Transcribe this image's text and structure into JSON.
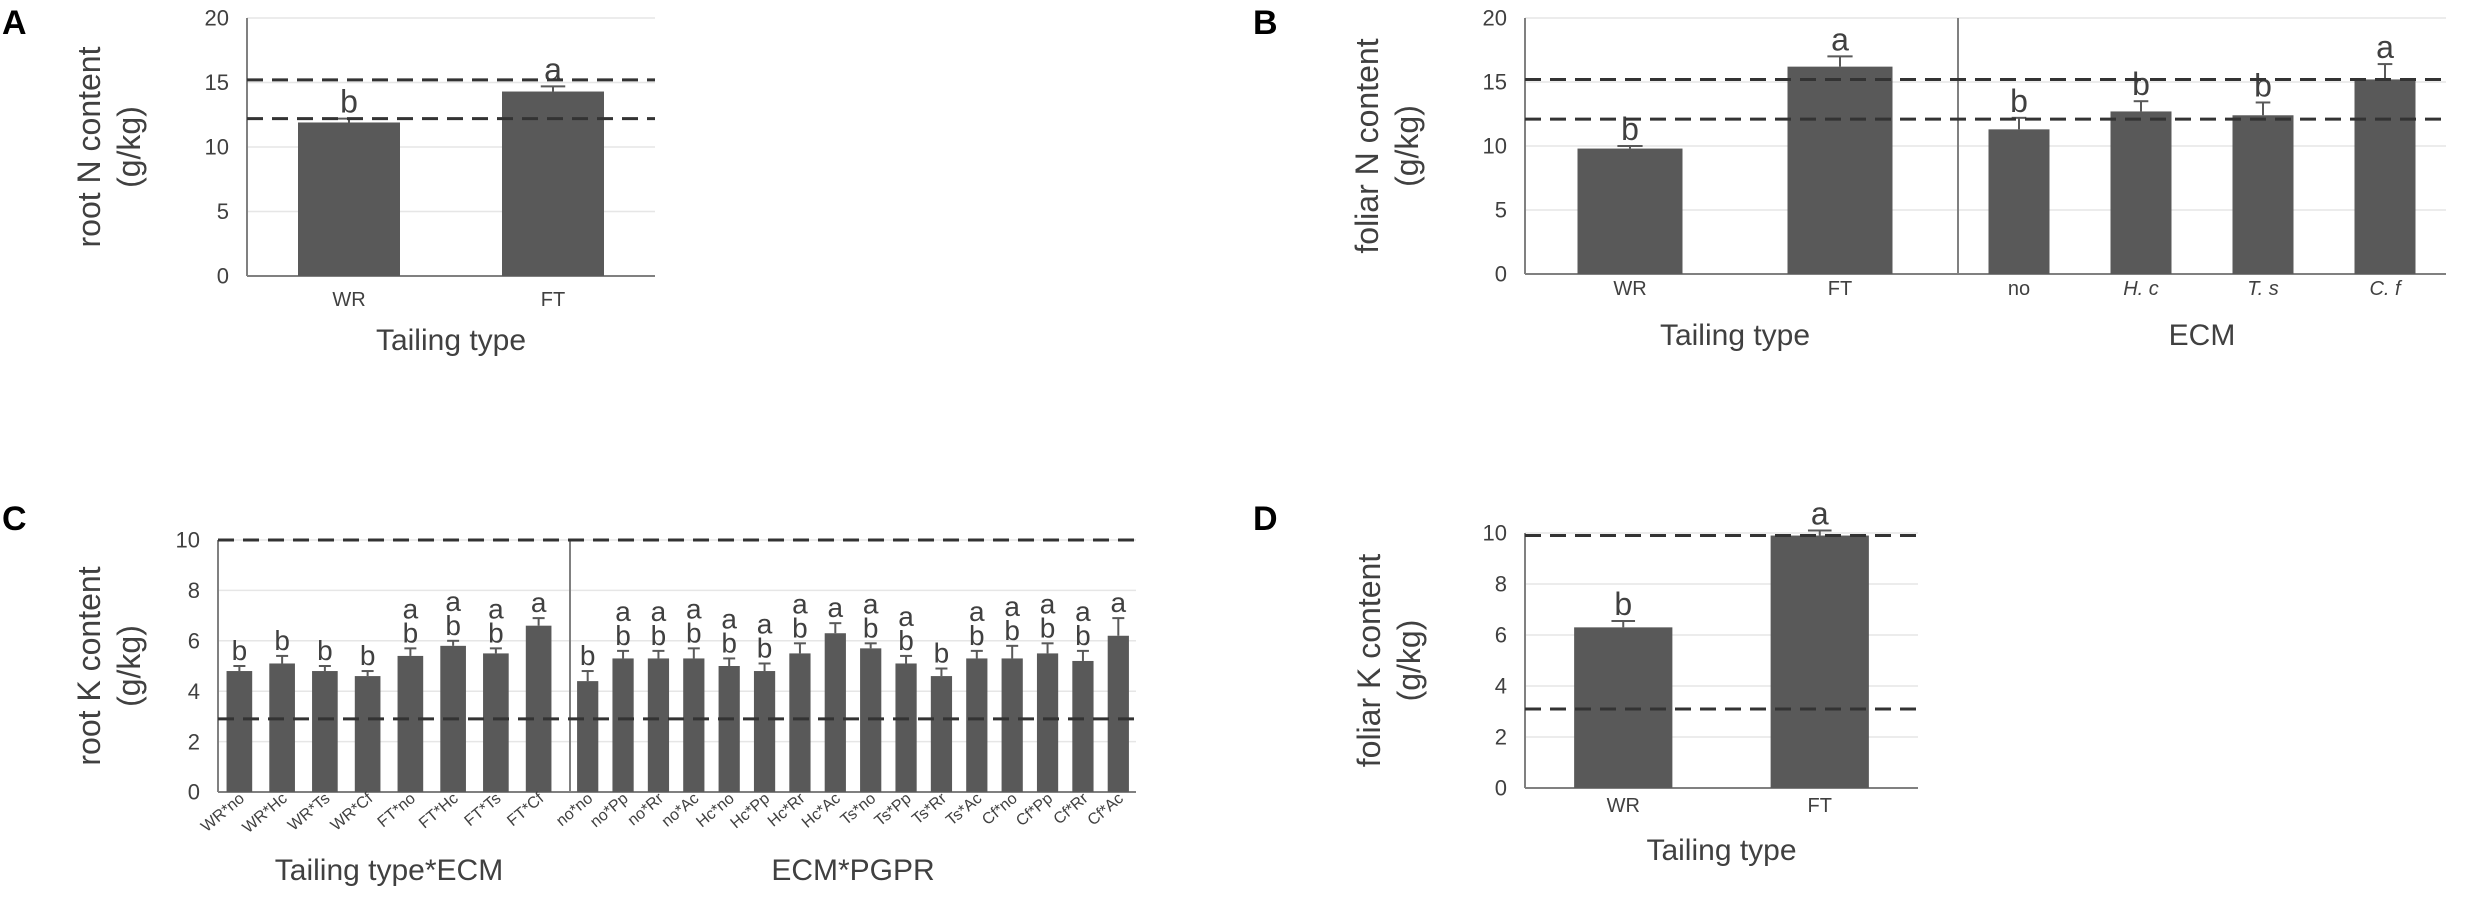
{
  "panels": {
    "A": "A",
    "B": "B",
    "C": "C",
    "D": "D"
  },
  "colors": {
    "bar": "#595959",
    "axis": "#808080",
    "grid": "#e6e6e6",
    "text": "#404040",
    "ref": "#333333"
  },
  "chart_data": [
    {
      "id": "A",
      "type": "bar",
      "ylabel_lines": [
        "root N content",
        "(g/kg)"
      ],
      "ylim": [
        0,
        20
      ],
      "yticks": [
        0,
        5,
        10,
        15,
        20
      ],
      "ref_lines": [
        15.2,
        12.2
      ],
      "groups": [
        {
          "xlabel": "Tailing type",
          "categories": [
            "WR",
            "FT"
          ],
          "values": [
            11.9,
            14.3
          ],
          "errors": [
            0.3,
            0.4
          ],
          "letters": [
            [
              "b"
            ],
            [
              "a"
            ]
          ]
        }
      ]
    },
    {
      "id": "B",
      "type": "bar",
      "ylabel_lines": [
        "foliar N content",
        "(g/kg)"
      ],
      "ylim": [
        0,
        20
      ],
      "yticks": [
        0,
        5,
        10,
        15,
        20
      ],
      "ref_lines": [
        15.2,
        12.1
      ],
      "groups": [
        {
          "xlabel": "Tailing type",
          "categories": [
            "WR",
            "FT"
          ],
          "values": [
            9.8,
            16.2
          ],
          "errors": [
            0.2,
            0.8
          ],
          "letters": [
            [
              "b"
            ],
            [
              "a"
            ]
          ]
        },
        {
          "xlabel": "ECM",
          "categories": [
            "no",
            "H. c",
            "T. s",
            "C. f"
          ],
          "italic": [
            false,
            true,
            true,
            true
          ],
          "values": [
            11.3,
            12.7,
            12.4,
            15.2
          ],
          "errors": [
            0.9,
            0.8,
            1.0,
            1.2
          ],
          "letters": [
            [
              "b"
            ],
            [
              "b"
            ],
            [
              "b"
            ],
            [
              "a"
            ]
          ]
        }
      ]
    },
    {
      "id": "C",
      "type": "bar",
      "ylabel_lines": [
        "root K content",
        "(g/kg)"
      ],
      "ylim": [
        0,
        10
      ],
      "yticks": [
        0,
        2,
        4,
        6,
        8,
        10
      ],
      "ref_lines": [
        10.0,
        2.9
      ],
      "rotated_labels": true,
      "groups": [
        {
          "xlabel": "Tailing type*ECM",
          "categories": [
            "WR*no",
            "WR*Hc",
            "WR*Ts",
            "WR*Cf",
            "FT*no",
            "FT*Hc",
            "FT*Ts",
            "FT*Cf"
          ],
          "values": [
            4.8,
            5.1,
            4.8,
            4.6,
            5.4,
            5.8,
            5.5,
            6.6
          ],
          "errors": [
            0.2,
            0.3,
            0.2,
            0.2,
            0.3,
            0.2,
            0.2,
            0.3
          ],
          "letters": [
            [
              "b"
            ],
            [
              "b"
            ],
            [
              "b"
            ],
            [
              "b"
            ],
            [
              "a",
              "b"
            ],
            [
              "a",
              "b"
            ],
            [
              "a",
              "b"
            ],
            [
              "a"
            ]
          ]
        },
        {
          "xlabel": "ECM*PGPR",
          "categories": [
            "no*no",
            "no*Pp",
            "no*Rr",
            "no*Ac",
            "Hc*no",
            "Hc*Pp",
            "Hc*Rr",
            "Hc*Ac",
            "Ts*no",
            "Ts*Pp",
            "Ts*Rr",
            "Ts*Ac",
            "Cf*no",
            "Cf*Pp",
            "Cf*Rr",
            "Cf*Ac"
          ],
          "values": [
            4.4,
            5.3,
            5.3,
            5.3,
            5.0,
            4.8,
            5.5,
            6.3,
            5.7,
            5.1,
            4.6,
            5.3,
            5.3,
            5.5,
            5.2,
            6.2
          ],
          "errors": [
            0.4,
            0.3,
            0.3,
            0.4,
            0.3,
            0.3,
            0.4,
            0.4,
            0.2,
            0.3,
            0.3,
            0.3,
            0.5,
            0.4,
            0.4,
            0.7
          ],
          "letters": [
            [
              "b"
            ],
            [
              "a",
              "b"
            ],
            [
              "a",
              "b"
            ],
            [
              "a",
              "b"
            ],
            [
              "a",
              "b"
            ],
            [
              "a",
              "b"
            ],
            [
              "a",
              "b"
            ],
            [
              "a"
            ],
            [
              "a",
              "b"
            ],
            [
              "a",
              "b"
            ],
            [
              "b"
            ],
            [
              "a",
              "b"
            ],
            [
              "a",
              "b"
            ],
            [
              "a",
              "b"
            ],
            [
              "a",
              "b"
            ],
            [
              "a"
            ]
          ]
        }
      ]
    },
    {
      "id": "D",
      "type": "bar",
      "ylabel_lines": [
        "foliar K content",
        "(g/kg)"
      ],
      "ylim": [
        0,
        10
      ],
      "yticks": [
        0,
        2,
        4,
        6,
        8,
        10
      ],
      "ref_lines": [
        9.9,
        3.1
      ],
      "groups": [
        {
          "xlabel": "Tailing type",
          "categories": [
            "WR",
            "FT"
          ],
          "values": [
            6.3,
            9.9
          ],
          "errors": [
            0.25,
            0.2
          ],
          "letters": [
            [
              "b"
            ],
            [
              "a"
            ]
          ]
        }
      ]
    }
  ]
}
